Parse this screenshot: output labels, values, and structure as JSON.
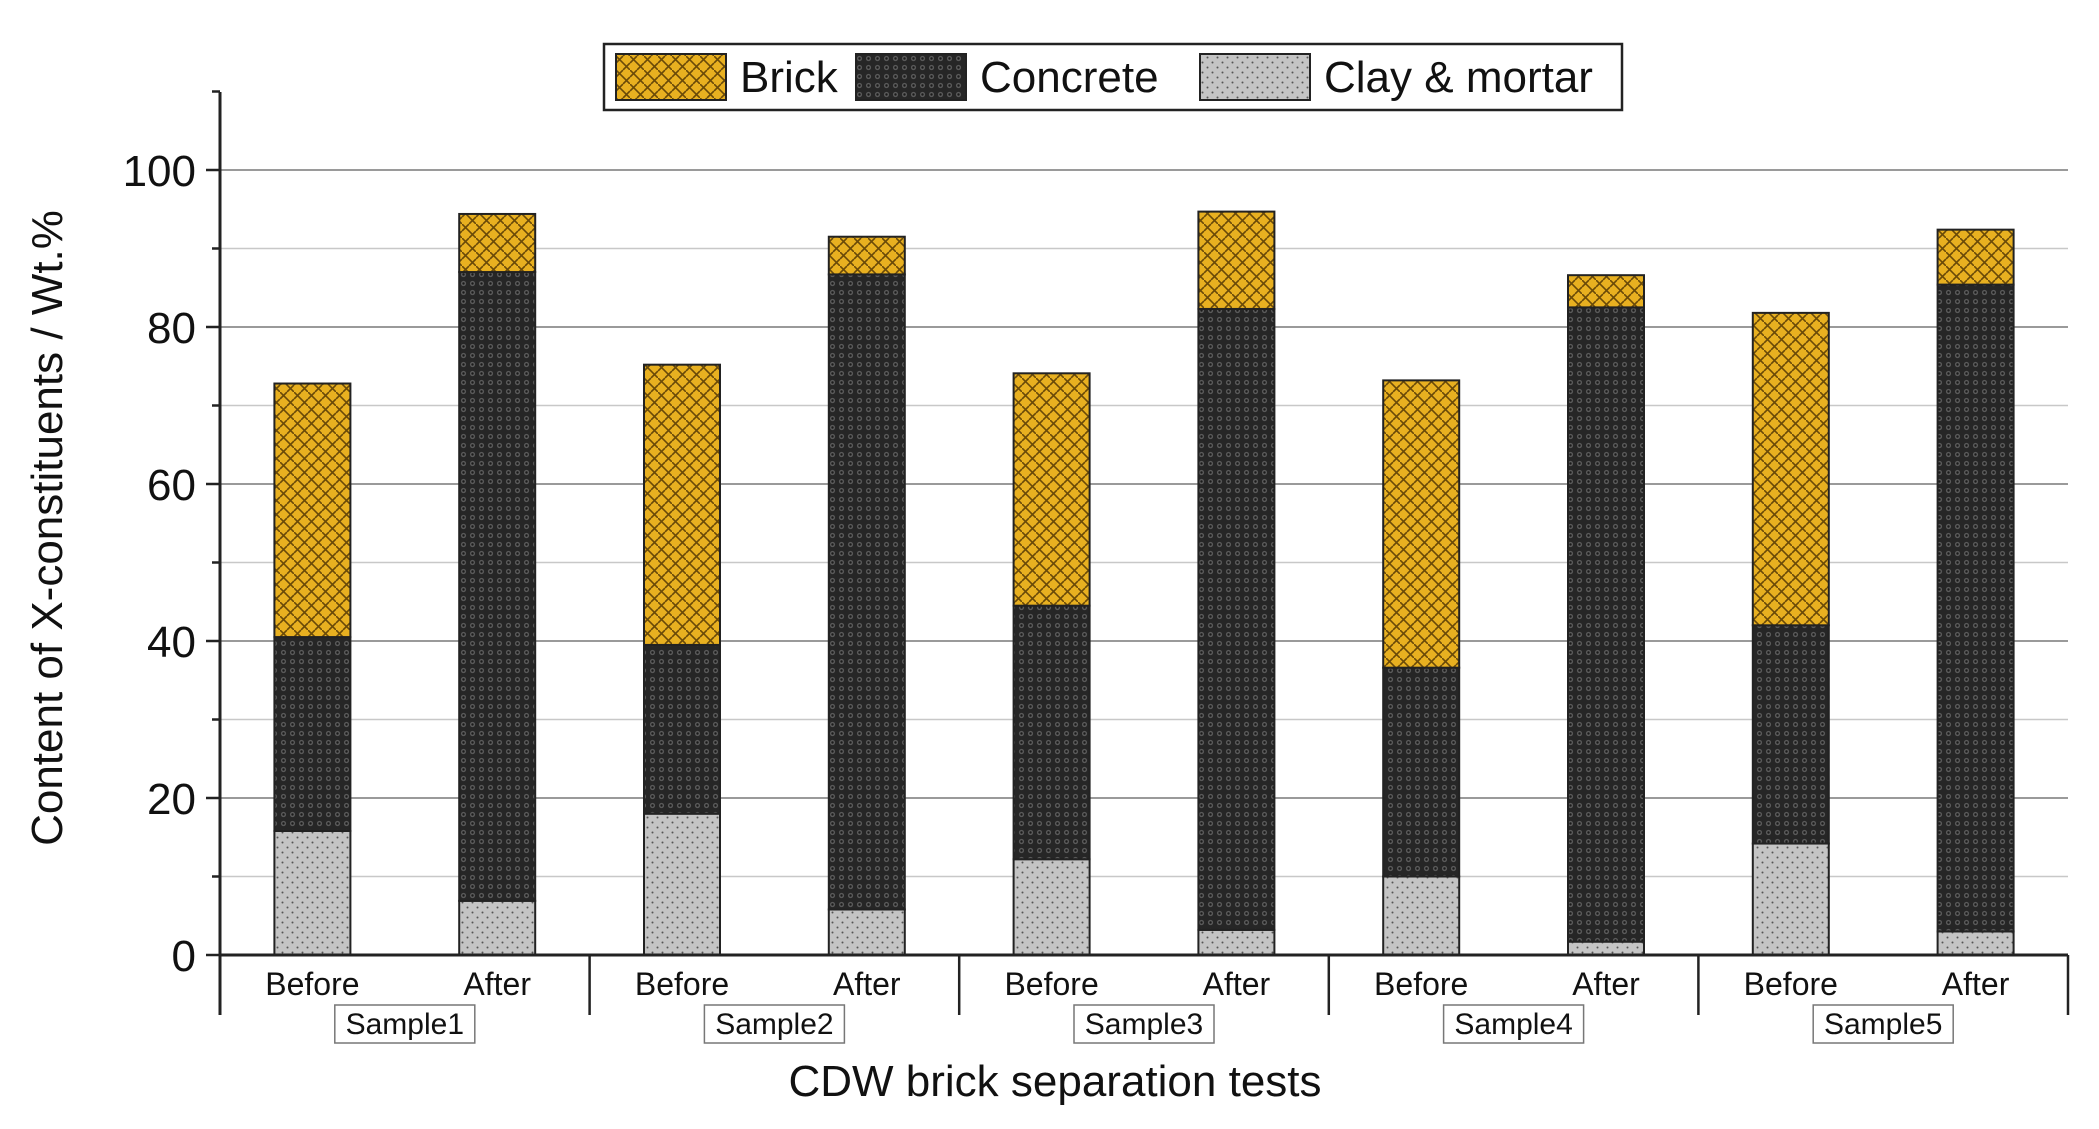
{
  "chart_data": {
    "type": "bar",
    "stacked": true,
    "title": "",
    "xlabel": "CDW brick separation tests",
    "ylabel": "Content of X-constituents / Wt.%",
    "ylim": [
      0,
      110
    ],
    "yticks": [
      0,
      20,
      40,
      60,
      80,
      100
    ],
    "grid": true,
    "legend_position": "top-center",
    "legend": [
      "Brick",
      "Concrete",
      "Clay & mortar"
    ],
    "groups": [
      "Sample1",
      "Sample2",
      "Sample3",
      "Sample4",
      "Sample5"
    ],
    "categories": [
      "Before",
      "After",
      "Before",
      "After",
      "Before",
      "After",
      "Before",
      "After",
      "Before",
      "After"
    ],
    "series": [
      {
        "name": "Clay & mortar",
        "color": "#c0c0c0",
        "pattern": "dots",
        "values": [
          15.8,
          6.9,
          18.0,
          5.8,
          12.2,
          3.2,
          10.0,
          1.7,
          14.2,
          3.0
        ]
      },
      {
        "name": "Concrete",
        "color": "#2b2b2b",
        "pattern": "beads",
        "values": [
          24.7,
          80.1,
          21.5,
          80.9,
          32.3,
          79.1,
          26.6,
          80.8,
          27.8,
          82.4
        ]
      },
      {
        "name": "Brick",
        "color": "#e8b020",
        "pattern": "weave",
        "values": [
          32.3,
          7.4,
          35.7,
          4.8,
          29.6,
          12.4,
          36.6,
          4.1,
          39.8,
          7.0
        ]
      }
    ]
  }
}
